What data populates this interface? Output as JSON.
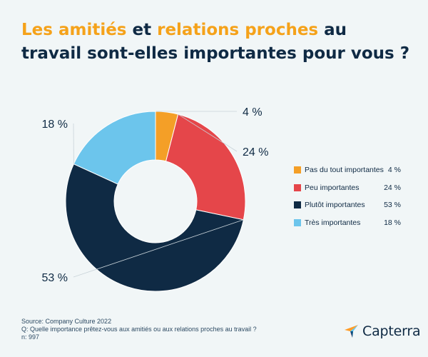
{
  "title": {
    "part1": "Les amitiés",
    "part2": " et ",
    "part3": "relations proches",
    "part4": " au",
    "part5": "travail sont-elles importantes pour vous ?"
  },
  "colors": {
    "accent": "#f5a21a",
    "title": "#0f2a44",
    "background": "#f1f6f7"
  },
  "chart_data": {
    "type": "pie",
    "style": "donut",
    "title": "Les amitiés et relations proches au travail sont-elles importantes pour vous ?",
    "categories": [
      "Pas du tout importantes",
      "Peu importantes",
      "Plutôt importantes",
      "Très importantes"
    ],
    "values": [
      4,
      24,
      53,
      18
    ],
    "labels": [
      "4 %",
      "24 %",
      "53 %",
      "18 %"
    ],
    "colors": [
      "#f49f27",
      "#e5464a",
      "#0f2a44",
      "#6cc5ec"
    ],
    "legend_position": "right"
  },
  "footer": {
    "source": "Source: Company Culture 2022",
    "question": "Q: Quelle importance prêtez-vous aux amitiés ou aux relations proches au travail ?",
    "n": "n: 997"
  },
  "logo": {
    "text": "Capterra",
    "icon": "capterra-arrow-icon"
  }
}
